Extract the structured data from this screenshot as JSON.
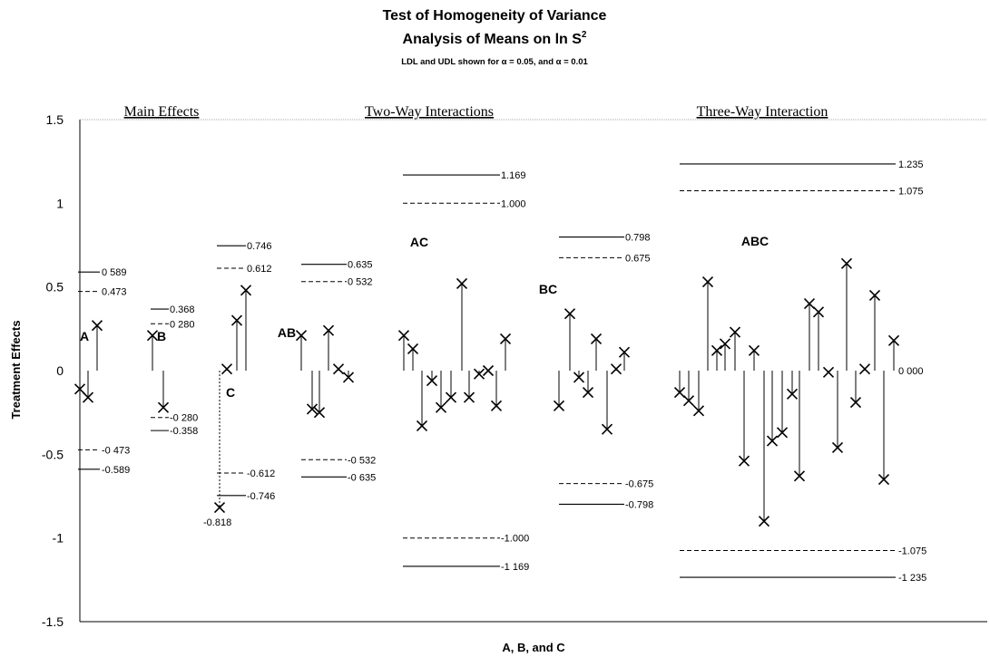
{
  "chart_data": {
    "type": "scatter",
    "title": "Test of Homogeneity of Variance",
    "subtitle": "Analysis of Means on ln S",
    "subtitle_sup": "2",
    "note": "LDL and UDL shown for α = 0.05, and α = 0.01",
    "xlabel": "A, B, and C",
    "ylabel": "Treatment Effects",
    "ylim": [
      -1.5,
      1.5
    ],
    "yticks": [
      "1.5",
      "1",
      "0.5",
      "0",
      "-0.5",
      "-1",
      "-1.5"
    ],
    "grid": false,
    "sections": [
      "Main Effects",
      "Two-Way Interactions",
      "Three-Way Interaction"
    ],
    "groups": [
      {
        "name": "A",
        "values": [
          -0.11,
          -0.16,
          0.27
        ],
        "limits": [
          {
            "value": 0.589,
            "label": "0 589",
            "style": "solid"
          },
          {
            "value": 0.473,
            "label": "0.473",
            "style": "dashed"
          },
          {
            "value": -0.473,
            "label": "-0 473",
            "style": "dashed"
          },
          {
            "value": -0.589,
            "label": "-0.589",
            "style": "solid"
          }
        ]
      },
      {
        "name": "B",
        "values": [
          0.21,
          -0.22
        ],
        "limits": [
          {
            "value": 0.368,
            "label": "0.368",
            "style": "solid"
          },
          {
            "value": 0.28,
            "label": "0 280",
            "style": "dashed"
          },
          {
            "value": -0.28,
            "label": "-0 280",
            "style": "dashed"
          },
          {
            "value": -0.358,
            "label": "-0.358",
            "style": "solid"
          }
        ]
      },
      {
        "name": "C",
        "values": [
          -0.818,
          0.01,
          0.3,
          0.48
        ],
        "limits": [
          {
            "value": 0.746,
            "label": "0.746",
            "style": "solid"
          },
          {
            "value": 0.612,
            "label": "0.612",
            "style": "dashed"
          },
          {
            "value": -0.612,
            "label": "-0.612",
            "style": "dashed"
          },
          {
            "value": -0.746,
            "label": "-0.746",
            "style": "solid"
          }
        ],
        "point_label": "-0.818"
      },
      {
        "name": "AB",
        "values": [
          0.21,
          -0.23,
          -0.25,
          0.24,
          0.01,
          -0.04
        ],
        "limits": [
          {
            "value": 0.635,
            "label": "0.635",
            "style": "solid"
          },
          {
            "value": 0.532,
            "label": "0 532",
            "style": "dashed"
          },
          {
            "value": -0.532,
            "label": "-0 532",
            "style": "dashed"
          },
          {
            "value": -0.635,
            "label": "-0 635",
            "style": "solid"
          }
        ]
      },
      {
        "name": "AC",
        "values": [
          0.21,
          0.13,
          -0.33,
          -0.06,
          -0.22,
          -0.16,
          0.52,
          -0.16,
          -0.02,
          0.0,
          -0.21,
          0.19
        ],
        "limits": [
          {
            "value": 1.169,
            "label": "1.169",
            "style": "solid"
          },
          {
            "value": 1.0,
            "label": "1.000",
            "style": "dashed"
          },
          {
            "value": -1.0,
            "label": "-1.000",
            "style": "dashed"
          },
          {
            "value": -1.169,
            "label": "-1 169",
            "style": "solid"
          }
        ]
      },
      {
        "name": "BC",
        "values": [
          -0.21,
          0.34,
          -0.04,
          -0.13,
          0.19,
          -0.35,
          0.01,
          0.11
        ],
        "limits": [
          {
            "value": 0.798,
            "label": "0.798",
            "style": "solid"
          },
          {
            "value": 0.675,
            "label": "0.675",
            "style": "dashed"
          },
          {
            "value": -0.675,
            "label": "-0.675",
            "style": "dashed"
          },
          {
            "value": -0.798,
            "label": "-0.798",
            "style": "solid"
          }
        ]
      },
      {
        "name": "ABC",
        "values": [
          -0.13,
          -0.18,
          -0.24,
          0.53,
          0.12,
          0.16,
          0.23,
          -0.54,
          0.12,
          -0.9,
          -0.42,
          -0.37,
          -0.14,
          -0.63,
          0.4,
          0.35,
          -0.01,
          -0.46,
          0.64,
          -0.19,
          0.01,
          0.45,
          -0.65,
          0.18
        ],
        "limits": [
          {
            "value": 1.235,
            "label": "1.235",
            "style": "solid"
          },
          {
            "value": 1.075,
            "label": "1.075",
            "style": "dashed"
          },
          {
            "value": 0,
            "label": "0 000",
            "style": "none"
          },
          {
            "value": -1.075,
            "label": "-1.075",
            "style": "dashed"
          },
          {
            "value": -1.235,
            "label": "-1 235",
            "style": "solid"
          }
        ]
      }
    ]
  }
}
